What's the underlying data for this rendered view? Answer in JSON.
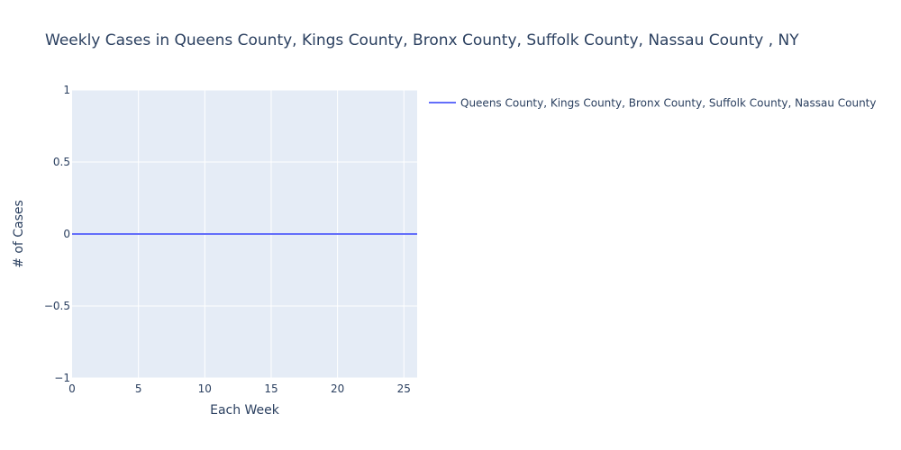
{
  "chart_data": {
    "type": "line",
    "title": "Weekly Cases in Queens County, Kings County, Bronx County, Suffolk County, Nassau County , NY",
    "xlabel": "Each Week",
    "ylabel": "# of Cases",
    "xlim": [
      0,
      26
    ],
    "ylim": [
      -1,
      1
    ],
    "x_ticks": [
      "0",
      "5",
      "10",
      "15",
      "20",
      "25"
    ],
    "x_tick_values": [
      0,
      5,
      10,
      15,
      20,
      25
    ],
    "y_ticks": [
      "1",
      "0.5",
      "0",
      "−0.5",
      "−1"
    ],
    "y_tick_values": [
      1,
      0.5,
      0,
      -0.5,
      -1
    ],
    "grid": true,
    "legend_position": "top-right",
    "plot_background": "#e5ecf6",
    "series": [
      {
        "name": "Queens County, Kings County, Bronx County, Suffolk County, Nassau County",
        "color": "#636efa",
        "x": [
          0,
          1,
          2,
          3,
          4,
          5,
          6,
          7,
          8,
          9,
          10,
          11,
          12,
          13,
          14,
          15,
          16,
          17,
          18,
          19,
          20,
          21,
          22,
          23,
          24,
          25,
          26
        ],
        "y": [
          0,
          0,
          0,
          0,
          0,
          0,
          0,
          0,
          0,
          0,
          0,
          0,
          0,
          0,
          0,
          0,
          0,
          0,
          0,
          0,
          0,
          0,
          0,
          0,
          0,
          0,
          0
        ]
      }
    ]
  }
}
